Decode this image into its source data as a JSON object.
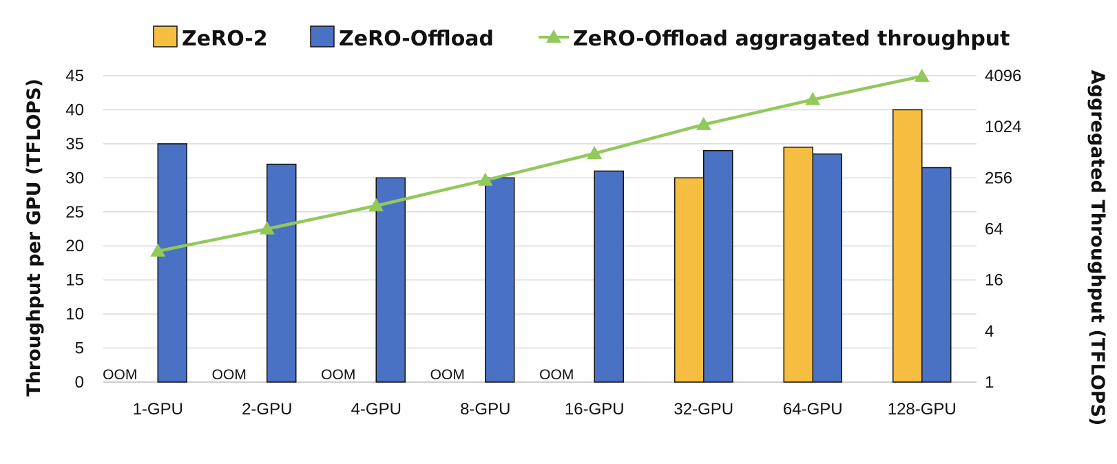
{
  "chart_data": {
    "type": "bar",
    "categories": [
      "1-GPU",
      "2-GPU",
      "4-GPU",
      "8-GPU",
      "16-GPU",
      "32-GPU",
      "64-GPU",
      "128-GPU"
    ],
    "series": [
      {
        "name": "ZeRO-2",
        "kind": "bar",
        "axis": "left",
        "color": "#F6BE41",
        "values": [
          null,
          null,
          null,
          null,
          null,
          30,
          34.5,
          40
        ]
      },
      {
        "name": "ZeRO-Offload",
        "kind": "bar",
        "axis": "left",
        "color": "#4A72C4",
        "values": [
          35,
          32,
          30,
          30,
          31,
          34,
          33.5,
          31.5
        ]
      },
      {
        "name": "ZeRO-Offload aggragated throughput",
        "kind": "line",
        "axis": "right",
        "color": "#92C95A",
        "marker": "triangle",
        "values": [
          35,
          64,
          120,
          240,
          496,
          1088,
          2144,
          4032
        ]
      }
    ],
    "annotations": [
      "OOM",
      "OOM",
      "OOM",
      "OOM",
      "OOM"
    ],
    "ylabel": "Throughput per GPU (TFLOPS)",
    "y2label": "Aggregated Throughput (TFLOPS)",
    "xlabel": "",
    "ylim": [
      0,
      45
    ],
    "yticks": [
      "0",
      "5",
      "10",
      "15",
      "20",
      "25",
      "30",
      "35",
      "40",
      "45"
    ],
    "y2_scale": "log2",
    "y2lim": [
      1,
      4096
    ],
    "y2ticks": [
      "1",
      "4",
      "16",
      "64",
      "256",
      "1024",
      "4096"
    ],
    "grid": true,
    "legend_position": "top"
  }
}
